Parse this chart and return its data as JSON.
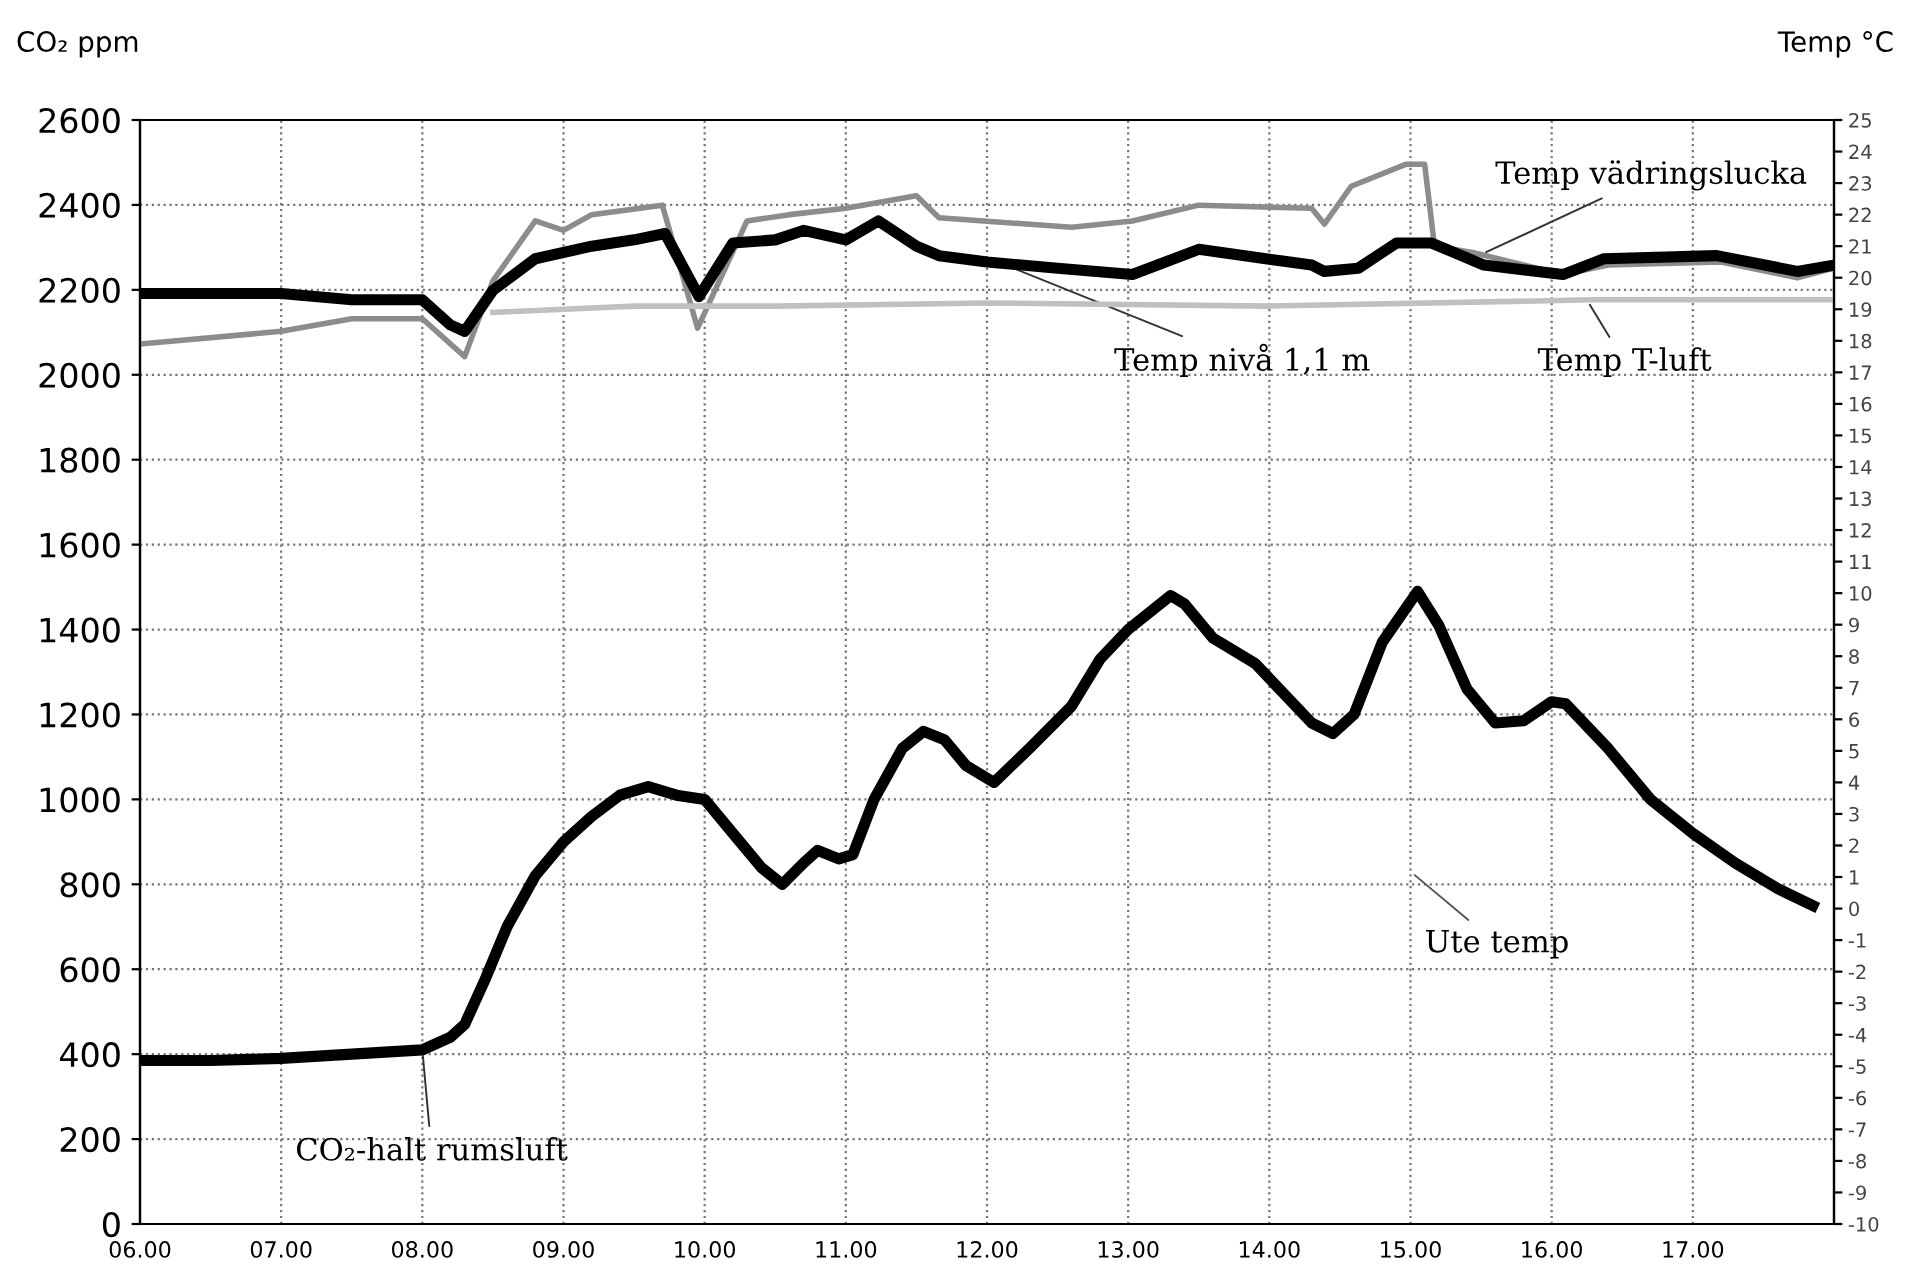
{
  "chart_data": {
    "type": "line",
    "ylabel": "CO₂ ppm",
    "y2label": "Temp °C",
    "xlim": [
      6,
      18
    ],
    "xticks": [
      {
        "value": 6,
        "label": "06.00"
      },
      {
        "value": 7,
        "label": "07.00"
      },
      {
        "value": 8,
        "label": "08.00"
      },
      {
        "value": 9,
        "label": "09.00"
      },
      {
        "value": 10,
        "label": "10.00"
      },
      {
        "value": 11,
        "label": "11.00"
      },
      {
        "value": 12,
        "label": "12.00"
      },
      {
        "value": 13,
        "label": "13.00"
      },
      {
        "value": 14,
        "label": "14.00"
      },
      {
        "value": 15,
        "label": "15.00"
      },
      {
        "value": 16,
        "label": "16.00"
      },
      {
        "value": 17,
        "label": "17.00"
      }
    ],
    "ylim": [
      0,
      2600
    ],
    "yticks": [
      0,
      200,
      400,
      600,
      800,
      1000,
      1200,
      1400,
      1600,
      1800,
      2000,
      2200,
      2400,
      2600
    ],
    "y2lim": [
      -10,
      25
    ],
    "y2ticks": [
      -10,
      -9,
      -8,
      -7,
      -6,
      -5,
      -4,
      -3,
      -2,
      -1,
      0,
      1,
      2,
      3,
      4,
      5,
      6,
      7,
      8,
      9,
      10,
      11,
      12,
      13,
      14,
      15,
      16,
      17,
      18,
      19,
      20,
      21,
      22,
      23,
      24,
      25
    ],
    "grid": true,
    "legend": false,
    "marker": "none",
    "line_style": "solid",
    "series": [
      {
        "name": "CO₂-halt rumsluft",
        "color": "#000000",
        "x": [
          6.0,
          6.5,
          7.0,
          7.5,
          8.0,
          8.2,
          8.3,
          8.45,
          8.6,
          8.8,
          9.0,
          9.2,
          9.4,
          9.6,
          9.8,
          10.0,
          10.2,
          10.4,
          10.55,
          10.7,
          10.8,
          10.95,
          11.05,
          11.2,
          11.4,
          11.55,
          11.7,
          11.85,
          12.05,
          12.3,
          12.6,
          12.8,
          13.0,
          13.3,
          13.4,
          13.6,
          13.9,
          14.1,
          14.3,
          14.45,
          14.6,
          14.8,
          15.05,
          15.2,
          15.4,
          15.6,
          15.8,
          16.0,
          16.1,
          16.4,
          16.7,
          17.0,
          17.3,
          17.6,
          17.85
        ],
        "values": [
          385,
          385,
          390,
          400,
          410,
          440,
          470,
          580,
          700,
          820,
          900,
          960,
          1010,
          1030,
          1010,
          1000,
          920,
          840,
          800,
          850,
          880,
          860,
          870,
          1000,
          1120,
          1160,
          1140,
          1080,
          1040,
          1120,
          1220,
          1330,
          1400,
          1480,
          1460,
          1380,
          1320,
          1250,
          1180,
          1155,
          1200,
          1370,
          1490,
          1410,
          1260,
          1180,
          1185,
          1230,
          1225,
          1120,
          1000,
          920,
          850,
          790,
          750
        ]
      },
      {
        "name": "Temp nivå 1,1 m",
        "color": "#000000",
        "axis": "y2",
        "x": [
          6.0,
          7.0,
          7.5,
          8.0,
          8.2,
          8.3,
          8.5,
          8.8,
          9.2,
          9.5,
          9.72,
          9.96,
          10.2,
          10.5,
          10.7,
          11.0,
          11.23,
          11.5,
          11.66,
          12.0,
          12.5,
          13.03,
          13.5,
          14.3,
          14.39,
          14.63,
          14.9,
          15.15,
          15.52,
          16.08,
          16.37,
          17.17,
          17.74,
          18.0
        ],
        "values": [
          19.5,
          19.5,
          19.3,
          19.3,
          18.5,
          18.3,
          19.6,
          20.6,
          21.0,
          21.2,
          21.4,
          19.4,
          21.1,
          21.2,
          21.5,
          21.2,
          21.8,
          21.0,
          20.7,
          20.5,
          20.3,
          20.1,
          20.9,
          20.4,
          20.2,
          20.3,
          21.1,
          21.1,
          20.4,
          20.1,
          20.6,
          20.7,
          20.2,
          20.4
        ]
      },
      {
        "name": "Temp vädringslucka",
        "color": "#8c8c8c",
        "axis": "y2",
        "x": [
          6.0,
          7.0,
          7.5,
          8.0,
          8.3,
          8.5,
          8.8,
          9.0,
          9.2,
          9.7,
          9.95,
          10.3,
          10.6,
          11.0,
          11.5,
          11.66,
          12.6,
          13.03,
          13.5,
          14.3,
          14.39,
          14.58,
          14.97,
          15.1,
          15.17,
          15.44,
          16.08,
          16.4,
          17.2,
          17.74,
          18.0
        ],
        "values": [
          17.9,
          18.3,
          18.7,
          18.7,
          17.5,
          19.9,
          21.8,
          21.5,
          22.0,
          22.3,
          18.4,
          21.8,
          22.0,
          22.2,
          22.6,
          21.9,
          21.6,
          21.8,
          22.3,
          22.2,
          21.7,
          22.9,
          23.6,
          23.6,
          21.0,
          20.8,
          20.1,
          20.4,
          20.5,
          20.0,
          20.3
        ]
      },
      {
        "name": "Temp T-luft",
        "color": "#c0c0c0",
        "axis": "y2",
        "x": [
          8.5,
          9.5,
          10.5,
          12.0,
          14.0,
          16.3,
          18.0
        ],
        "values": [
          18.9,
          19.1,
          19.1,
          19.2,
          19.1,
          19.3,
          19.3
        ]
      }
    ],
    "annotations": [
      "Ute temp"
    ]
  }
}
